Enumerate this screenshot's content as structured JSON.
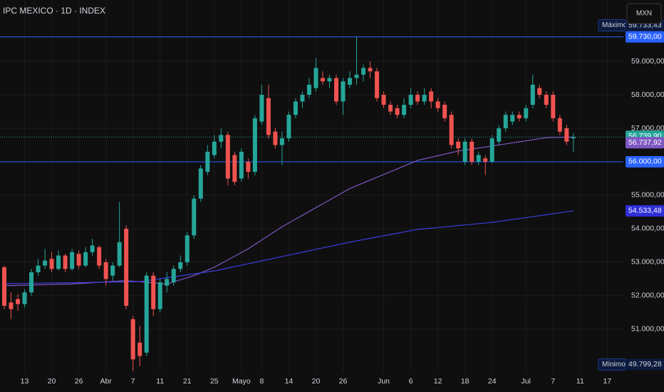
{
  "chart_data": {
    "type": "candlestick",
    "title": "IPC MEXICO · 1D · INDEX",
    "categories": [
      null,
      null,
      null,
      "13",
      null,
      null,
      null,
      "20",
      null,
      null,
      null,
      "26",
      null,
      null,
      null,
      "Abr",
      null,
      null,
      null,
      "7",
      null,
      null,
      null,
      "11",
      null,
      null,
      null,
      "21",
      null,
      null,
      null,
      "25",
      null,
      null,
      null,
      "Mayo",
      null,
      null,
      "8",
      null,
      null,
      null,
      "14",
      null,
      null,
      null,
      "20",
      null,
      null,
      null,
      "26",
      null,
      null,
      null,
      null,
      null,
      "Jun",
      null,
      null,
      null,
      "6",
      null,
      null,
      null,
      "12",
      null,
      null,
      null,
      "18",
      null,
      null,
      null,
      "24",
      null,
      null,
      null,
      null,
      "Jul",
      null,
      null,
      null,
      "7",
      null,
      null,
      null,
      "11",
      null,
      null,
      null,
      "17"
    ],
    "open": [
      52850,
      51800,
      51900,
      51750,
      52100,
      52700,
      52900,
      53100,
      52800,
      53200,
      52800,
      53250,
      52900,
      53300,
      53450,
      53000,
      52600,
      52900,
      54000,
      51300,
      50600,
      50300,
      52600,
      51600,
      52300,
      52400,
      52800,
      53000,
      53800,
      54900,
      55700,
      56200,
      56600,
      56800,
      56200,
      55500,
      56000,
      55700,
      57200,
      57900,
      56900,
      56500,
      56700,
      57400,
      57800,
      58000,
      58200,
      58500,
      58400,
      58500,
      57800,
      58300,
      58500,
      58600,
      58800,
      58700,
      58000,
      57700,
      57600,
      57400,
      57700,
      58000,
      57800,
      58100,
      57800,
      57700,
      57400,
      56600,
      56000,
      56600,
      56000,
      56100,
      56000,
      56600,
      57000,
      57200,
      57400,
      57300,
      57700,
      58200,
      58000,
      58000,
      57300,
      57000,
      56700,
      null,
      null,
      null,
      null,
      null
    ],
    "high": [
      52900,
      52100,
      52050,
      52200,
      52800,
      53100,
      53400,
      53300,
      53350,
      53250,
      53400,
      53350,
      53450,
      53700,
      53500,
      53100,
      53000,
      54800,
      54100,
      51400,
      51100,
      52700,
      52700,
      52500,
      52700,
      52900,
      53200,
      53900,
      55000,
      55900,
      56500,
      56800,
      57000,
      56900,
      56300,
      56400,
      56100,
      57400,
      58300,
      58300,
      57000,
      56900,
      57500,
      57900,
      58100,
      58500,
      59100,
      58700,
      58600,
      58600,
      58500,
      58700,
      59730,
      58900,
      59000,
      58800,
      58100,
      57800,
      57700,
      57900,
      58200,
      58100,
      58200,
      58200,
      57900,
      57800,
      57500,
      56700,
      56700,
      56700,
      56300,
      56200,
      56800,
      57100,
      57500,
      57500,
      57500,
      57700,
      58600,
      58300,
      58100,
      58100,
      57400,
      57100,
      56850,
      null,
      null,
      null,
      null,
      null
    ],
    "low": [
      51600,
      51300,
      51550,
      51650,
      52000,
      52600,
      52800,
      52700,
      52750,
      52700,
      52750,
      52800,
      52850,
      53200,
      52800,
      52300,
      52450,
      52850,
      51600,
      49750,
      49900,
      50200,
      51400,
      51500,
      52100,
      52300,
      52700,
      52900,
      53700,
      54800,
      55600,
      56100,
      56400,
      55300,
      55300,
      55400,
      55500,
      55600,
      57100,
      56700,
      56400,
      55900,
      56600,
      57300,
      57600,
      57900,
      58100,
      58300,
      58200,
      57700,
      57400,
      58200,
      58300,
      58400,
      58500,
      57800,
      57600,
      57400,
      57300,
      57300,
      57600,
      57700,
      57700,
      57600,
      57500,
      57200,
      56400,
      56200,
      55900,
      55900,
      55900,
      55600,
      55950,
      56500,
      56900,
      57100,
      57200,
      57200,
      57600,
      57900,
      57600,
      57200,
      56800,
      56500,
      56300,
      null,
      null,
      null,
      null,
      null
    ],
    "close": [
      51700,
      51600,
      51750,
      52100,
      52700,
      52900,
      53050,
      52800,
      53200,
      52800,
      53300,
      52900,
      53300,
      53500,
      52900,
      52500,
      52900,
      53600,
      51700,
      50100,
      50200,
      52600,
      51600,
      52400,
      52500,
      52800,
      53000,
      53800,
      54900,
      55800,
      56300,
      56600,
      56800,
      55500,
      55400,
      56300,
      55700,
      57300,
      58000,
      56800,
      56500,
      56700,
      57400,
      57800,
      58000,
      58300,
      58800,
      58400,
      58500,
      57800,
      58400,
      58500,
      58600,
      58800,
      58700,
      57900,
      57700,
      57500,
      57400,
      57700,
      58000,
      57800,
      58000,
      57800,
      57600,
      57300,
      56500,
      56400,
      56600,
      56000,
      56200,
      56000,
      56700,
      57000,
      57400,
      57400,
      57300,
      57600,
      58300,
      58000,
      57700,
      57300,
      56900,
      56600,
      56739.9,
      null,
      null,
      null,
      null,
      null
    ],
    "up_color": "#26a69a",
    "down_color": "#ef5350",
    "lines": [
      {
        "color": "#7e57c2",
        "values": [
          52300,
          52305,
          52310,
          52315,
          52320,
          52325,
          52330,
          52335,
          52340,
          52345,
          52350,
          52363,
          52375,
          52388,
          52400,
          52413,
          52425,
          52438,
          52450,
          52433,
          52417,
          52400,
          52383,
          52367,
          52350,
          52413,
          52475,
          52538,
          52600,
          52683,
          52767,
          52850,
          52960,
          53070,
          53180,
          53290,
          53400,
          53532,
          53664,
          53796,
          53928,
          54060,
          54174,
          54288,
          54402,
          54516,
          54630,
          54744,
          54858,
          54972,
          55086,
          55200,
          55284,
          55368,
          55452,
          55536,
          55620,
          55704,
          55788,
          55872,
          55956,
          56040,
          56087,
          56133,
          56180,
          56227,
          56273,
          56320,
          56350,
          56380,
          56410,
          56440,
          56470,
          56501,
          56533,
          56564,
          56595,
          56626,
          56658,
          56689,
          56720,
          56725,
          56729,
          56734,
          56737.92,
          null,
          null,
          null,
          null,
          null
        ]
      },
      {
        "color": "#3d3de0",
        "values": [
          52360,
          52363,
          52366,
          52369,
          52372,
          52375,
          52378,
          52381,
          52384,
          52387,
          52390,
          52393,
          52396,
          52399,
          52402,
          52405,
          52408,
          52411,
          52414,
          52417,
          52420,
          52449,
          52478,
          52507,
          52536,
          52565,
          52594,
          52624,
          52653,
          52682,
          52711,
          52740,
          52783,
          52826,
          52869,
          52912,
          52955,
          52998,
          53041,
          53084,
          53127,
          53170,
          53213,
          53256,
          53299,
          53342,
          53385,
          53428,
          53471,
          53514,
          53557,
          53600,
          53638,
          53676,
          53714,
          53752,
          53790,
          53828,
          53866,
          53904,
          53942,
          53980,
          53999,
          54018,
          54037,
          54056,
          54075,
          54094,
          54114,
          54133,
          54152,
          54171,
          54190,
          54219,
          54247,
          54276,
          54304,
          54333,
          54362,
          54390,
          54419,
          54447,
          54476,
          54505,
          54533.48,
          null,
          null,
          null,
          null,
          null
        ]
      }
    ],
    "hlines": [
      {
        "value": 59730,
        "label": "59.730,00",
        "color": "#2962ff"
      },
      {
        "value": 56000,
        "label": "56.000,00",
        "color": "#2962ff"
      }
    ],
    "price_labels": [
      {
        "value": 56739.9,
        "label": "56.739,90",
        "color": "#26a69a"
      },
      {
        "value": 56737.92,
        "label": "56.737,92",
        "color": "#7e57c2"
      },
      {
        "value": 54533.48,
        "label": "54.533,48",
        "color": "#2f2fd8"
      }
    ],
    "extremes": [
      {
        "name": "Máximo",
        "value": 59733.43,
        "label": "59.733,43"
      },
      {
        "name": "Mínimo",
        "value": 49799.28,
        "label": "49.799,28"
      }
    ],
    "ylim": [
      49700,
      60830
    ],
    "yticks": [
      {
        "value": 51000,
        "label": "51.000,00"
      },
      {
        "value": 52000,
        "label": "52.000,00"
      },
      {
        "value": 53000,
        "label": "53.000,00"
      },
      {
        "value": 54000,
        "label": "54.000,00"
      },
      {
        "value": 55000,
        "label": "55.000,00"
      },
      {
        "value": 56000,
        "label": "56.000,00"
      },
      {
        "value": 57000,
        "label": "57.000,00"
      },
      {
        "value": 58000,
        "label": "58.000,00"
      },
      {
        "value": 59000,
        "label": "59.000,00"
      }
    ],
    "grid": true
  },
  "currency_button": "MXN"
}
